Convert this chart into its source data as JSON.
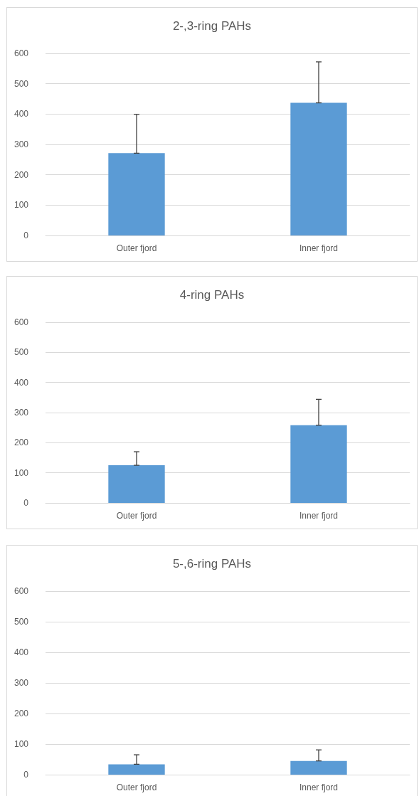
{
  "chart_data": [
    {
      "type": "bar",
      "title": "2-,3-ring PAHs",
      "categories": [
        "Outer fjord",
        "Inner fjord"
      ],
      "values": [
        271,
        437
      ],
      "errors": [
        [
          271,
          399
        ],
        [
          437,
          572
        ]
      ],
      "color": "#5b9bd5",
      "ylim": [
        0,
        600
      ],
      "yticks": [
        0,
        100,
        200,
        300,
        400,
        500,
        600
      ],
      "grid": "y"
    },
    {
      "type": "bar",
      "title": "4-ring PAHs",
      "categories": [
        "Outer fjord",
        "Inner fjord"
      ],
      "values": [
        125,
        258
      ],
      "errors": [
        [
          125,
          170
        ],
        [
          258,
          344
        ]
      ],
      "color": "#5b9bd5",
      "ylim": [
        0,
        600
      ],
      "yticks": [
        0,
        100,
        200,
        300,
        400,
        500,
        600
      ],
      "grid": "y"
    },
    {
      "type": "bar",
      "title": "5-,6-ring PAHs",
      "categories": [
        "Outer fjord",
        "Inner fjord"
      ],
      "values": [
        34,
        45
      ],
      "errors": [
        [
          34,
          65
        ],
        [
          45,
          81
        ]
      ],
      "color": "#5b9bd5",
      "ylim": [
        0,
        600
      ],
      "yticks": [
        0,
        100,
        200,
        300,
        400,
        500,
        600
      ],
      "grid": "y"
    }
  ]
}
